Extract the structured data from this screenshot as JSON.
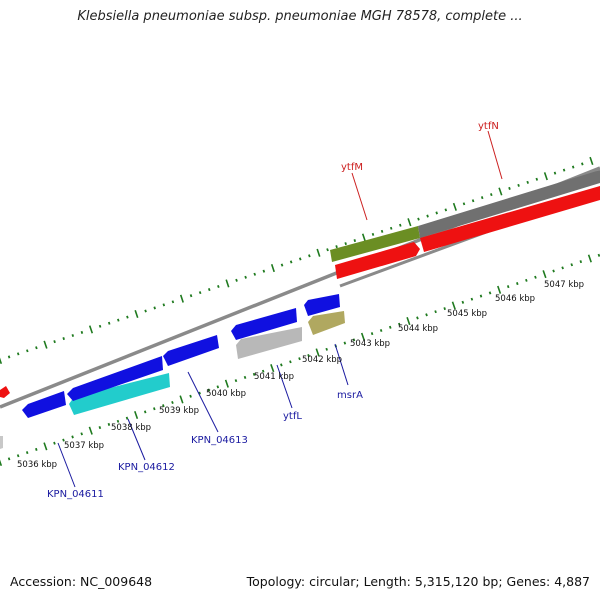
{
  "title": "Klebsiella pneumoniae subsp. pneumoniae MGH 78578, complete ...",
  "footer": {
    "accession": "Accession: NC_009648",
    "summary": "Topology: circular; Length: 5,315,120 bp; Genes: 4,887"
  },
  "colors": {
    "backbone": "#8a8a8a",
    "tick": "#1f7a1f",
    "gene_blue": "#1010e0",
    "gene_cyan": "#22cccc",
    "gene_grey": "#b8b8b8",
    "gene_olive": "#b0a860",
    "gene_green": "#6b8e23",
    "gene_red": "#ee1111",
    "gene_dark": "#707070",
    "label_blue": "#1a1aa0",
    "label_red": "#cc2020"
  },
  "scale": {
    "unit": "kbp",
    "ticks": [
      {
        "kbp": 5036,
        "label": "5036 kbp"
      },
      {
        "kbp": 5037,
        "label": "5037 kbp"
      },
      {
        "kbp": 5038,
        "label": "5038 kbp"
      },
      {
        "kbp": 5039,
        "label": "5039 kbp"
      },
      {
        "kbp": 5040,
        "label": "5040 kbp"
      },
      {
        "kbp": 5041,
        "label": "5041 kbp"
      },
      {
        "kbp": 5042,
        "label": "5042 kbp"
      },
      {
        "kbp": 5043,
        "label": "5043 kbp"
      },
      {
        "kbp": 5044,
        "label": "5044 kbp"
      },
      {
        "kbp": 5045,
        "label": "5045 kbp"
      },
      {
        "kbp": 5046,
        "label": "5046 kbp"
      },
      {
        "kbp": 5047,
        "label": "5047 kbp"
      }
    ]
  },
  "genes": [
    {
      "name": "KPN_04611",
      "label": "KPN_04611",
      "strand": "reverse",
      "color": "gene_blue"
    },
    {
      "name": "KPN_04612",
      "label": "KPN_04612",
      "strand": "reverse",
      "color": "gene_cyan"
    },
    {
      "name": "KPN_04613",
      "label": "KPN_04613",
      "strand": "reverse",
      "color": "gene_blue"
    },
    {
      "name": "ytfL",
      "label": "ytfL",
      "strand": "reverse",
      "color": "gene_grey"
    },
    {
      "name": "msrA",
      "label": "msrA",
      "strand": "reverse",
      "color": "gene_olive"
    },
    {
      "name": "ytfM",
      "label": "ytfM",
      "strand": "forward",
      "color": "gene_green"
    },
    {
      "name": "ytfN",
      "label": "ytfN",
      "strand": "forward",
      "color": "gene_red"
    }
  ]
}
